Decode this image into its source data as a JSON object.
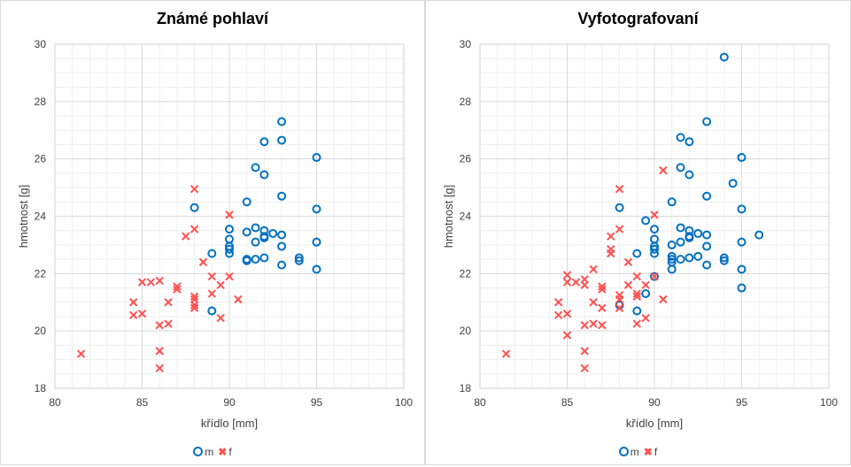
{
  "chart_data": [
    {
      "type": "scatter",
      "title": "Známé pohlaví",
      "xlabel": "křídlo [mm]",
      "ylabel": "hmotnost [g]",
      "xlim": [
        80,
        100
      ],
      "ylim": [
        18,
        30
      ],
      "xticks": [
        80,
        85,
        90,
        95,
        100
      ],
      "yticks": [
        18,
        20,
        22,
        24,
        26,
        28,
        30
      ],
      "grid": true,
      "legend": "bottom",
      "series": [
        {
          "name": "m",
          "marker": "circle",
          "color": "#0070c0",
          "points": [
            [
              88,
              24.3
            ],
            [
              89,
              22.7
            ],
            [
              89,
              20.7
            ],
            [
              90,
              23.55
            ],
            [
              90,
              23.2
            ],
            [
              90,
              22.95
            ],
            [
              90,
              22.85
            ],
            [
              90,
              22.7
            ],
            [
              91,
              24.5
            ],
            [
              91,
              23.45
            ],
            [
              91,
              22.5
            ],
            [
              91,
              22.45
            ],
            [
              91.5,
              23.6
            ],
            [
              91.5,
              23.1
            ],
            [
              91.5,
              22.5
            ],
            [
              91.5,
              25.7
            ],
            [
              92,
              25.45
            ],
            [
              92,
              26.6
            ],
            [
              92,
              23.5
            ],
            [
              92,
              23.3
            ],
            [
              92,
              23.25
            ],
            [
              92,
              22.55
            ],
            [
              92.5,
              23.4
            ],
            [
              93,
              27.3
            ],
            [
              93,
              26.65
            ],
            [
              93,
              24.7
            ],
            [
              93,
              23.35
            ],
            [
              93,
              22.95
            ],
            [
              93,
              22.3
            ],
            [
              94,
              22.55
            ],
            [
              94,
              22.45
            ],
            [
              95,
              26.05
            ],
            [
              95,
              24.25
            ],
            [
              95,
              23.1
            ],
            [
              95,
              22.15
            ]
          ]
        },
        {
          "name": "f",
          "marker": "x",
          "color": "#ff5050",
          "points": [
            [
              81.5,
              19.2
            ],
            [
              84.5,
              21.0
            ],
            [
              84.5,
              20.55
            ],
            [
              85,
              20.6
            ],
            [
              85,
              21.7
            ],
            [
              85.5,
              21.7
            ],
            [
              86,
              21.75
            ],
            [
              86,
              20.2
            ],
            [
              86,
              19.3
            ],
            [
              86,
              18.7
            ],
            [
              86.5,
              20.25
            ],
            [
              86.5,
              21.0
            ],
            [
              87,
              21.55
            ],
            [
              87,
              21.45
            ],
            [
              87.5,
              23.3
            ],
            [
              88,
              24.95
            ],
            [
              88,
              23.55
            ],
            [
              88,
              21.2
            ],
            [
              88,
              21.1
            ],
            [
              88,
              20.9
            ],
            [
              88,
              20.8
            ],
            [
              88.5,
              22.4
            ],
            [
              89,
              21.9
            ],
            [
              89,
              21.3
            ],
            [
              89.5,
              21.6
            ],
            [
              89.5,
              20.45
            ],
            [
              90,
              24.05
            ],
            [
              90,
              21.9
            ],
            [
              90.5,
              21.1
            ]
          ]
        }
      ]
    },
    {
      "type": "scatter",
      "title": "Vyfotografovaní",
      "xlabel": "křídlo [mm]",
      "ylabel": "hmotnost [g]",
      "xlim": [
        80,
        100
      ],
      "ylim": [
        18,
        30
      ],
      "xticks": [
        80,
        85,
        90,
        95,
        100
      ],
      "yticks": [
        18,
        20,
        22,
        24,
        26,
        28,
        30
      ],
      "grid": true,
      "legend": "bottom",
      "series": [
        {
          "name": "m",
          "marker": "circle",
          "color": "#0070c0",
          "points": [
            [
              88,
              24.3
            ],
            [
              88,
              20.9
            ],
            [
              89,
              22.7
            ],
            [
              89,
              20.7
            ],
            [
              89.5,
              23.85
            ],
            [
              89.5,
              21.3
            ],
            [
              90,
              23.55
            ],
            [
              90,
              23.2
            ],
            [
              90,
              22.95
            ],
            [
              90,
              22.85
            ],
            [
              90,
              22.7
            ],
            [
              90,
              21.9
            ],
            [
              91,
              24.5
            ],
            [
              91,
              23.0
            ],
            [
              91,
              22.6
            ],
            [
              91,
              22.5
            ],
            [
              91,
              22.4
            ],
            [
              91,
              22.15
            ],
            [
              91.5,
              26.75
            ],
            [
              91.5,
              25.7
            ],
            [
              91.5,
              23.6
            ],
            [
              91.5,
              23.1
            ],
            [
              91.5,
              22.5
            ],
            [
              92,
              26.6
            ],
            [
              92,
              25.45
            ],
            [
              92,
              23.5
            ],
            [
              92,
              23.3
            ],
            [
              92,
              23.25
            ],
            [
              92,
              22.55
            ],
            [
              92.5,
              23.4
            ],
            [
              92.5,
              22.6
            ],
            [
              93,
              27.3
            ],
            [
              93,
              24.7
            ],
            [
              93,
              23.35
            ],
            [
              93,
              22.95
            ],
            [
              93,
              22.3
            ],
            [
              94,
              29.55
            ],
            [
              94,
              22.55
            ],
            [
              94,
              22.45
            ],
            [
              94.5,
              25.15
            ],
            [
              95,
              26.05
            ],
            [
              95,
              24.25
            ],
            [
              95,
              23.1
            ],
            [
              95,
              22.15
            ],
            [
              95,
              21.5
            ],
            [
              96,
              23.35
            ]
          ]
        },
        {
          "name": "f",
          "marker": "x",
          "color": "#ff5050",
          "points": [
            [
              81.5,
              19.2
            ],
            [
              84.5,
              21.0
            ],
            [
              84.5,
              20.55
            ],
            [
              85,
              21.95
            ],
            [
              85,
              21.7
            ],
            [
              85,
              20.6
            ],
            [
              85,
              19.85
            ],
            [
              85.5,
              21.7
            ],
            [
              86,
              21.8
            ],
            [
              86,
              21.6
            ],
            [
              86,
              20.2
            ],
            [
              86,
              19.3
            ],
            [
              86,
              18.7
            ],
            [
              86.5,
              22.15
            ],
            [
              86.5,
              21.0
            ],
            [
              86.5,
              20.25
            ],
            [
              87,
              21.55
            ],
            [
              87,
              21.45
            ],
            [
              87,
              20.8
            ],
            [
              87,
              20.2
            ],
            [
              87.5,
              23.3
            ],
            [
              87.5,
              22.85
            ],
            [
              87.5,
              22.7
            ],
            [
              88,
              24.95
            ],
            [
              88,
              23.55
            ],
            [
              88,
              21.25
            ],
            [
              88,
              21.1
            ],
            [
              88,
              20.8
            ],
            [
              88.5,
              22.4
            ],
            [
              88.5,
              21.6
            ],
            [
              89,
              21.9
            ],
            [
              89,
              21.3
            ],
            [
              89,
              21.2
            ],
            [
              89,
              20.25
            ],
            [
              89.5,
              21.6
            ],
            [
              89.5,
              20.45
            ],
            [
              90,
              24.05
            ],
            [
              90,
              21.9
            ],
            [
              90.5,
              25.6
            ],
            [
              90.5,
              21.1
            ]
          ]
        }
      ]
    }
  ]
}
